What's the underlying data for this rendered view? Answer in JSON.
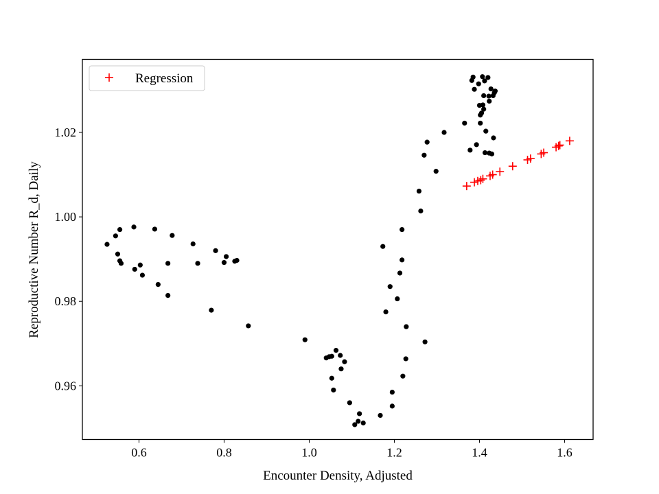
{
  "chart_data": {
    "type": "scatter",
    "title": "",
    "xlabel": "Encounter Density, Adjusted",
    "ylabel": "Reproductive Number R_d, Daily",
    "xlim": [
      0.467,
      1.667
    ],
    "ylim": [
      0.9473,
      1.0373
    ],
    "xticks": [
      0.6,
      0.8,
      1.0,
      1.2,
      1.4,
      1.6
    ],
    "xtick_labels": [
      "0.6",
      "0.8",
      "1.0",
      "1.2",
      "1.4",
      "1.6"
    ],
    "yticks": [
      0.96,
      0.98,
      1.0,
      1.02
    ],
    "ytick_labels": [
      "0.96",
      "0.98",
      "1.00",
      "1.02"
    ],
    "grid": false,
    "legend_position": "top-left",
    "series": [
      {
        "marker": "dot",
        "color": "#000000",
        "points": [
          [
            0.525,
            0.9935
          ],
          [
            0.545,
            0.9955
          ],
          [
            0.555,
            0.997
          ],
          [
            0.55,
            0.9912
          ],
          [
            0.555,
            0.9896
          ],
          [
            0.558,
            0.989
          ],
          [
            0.588,
            0.9976
          ],
          [
            0.59,
            0.9876
          ],
          [
            0.603,
            0.9886
          ],
          [
            0.608,
            0.9862
          ],
          [
            0.637,
            0.9971
          ],
          [
            0.645,
            0.984
          ],
          [
            0.668,
            0.989
          ],
          [
            0.668,
            0.9814
          ],
          [
            0.678,
            0.9956
          ],
          [
            0.727,
            0.9936
          ],
          [
            0.738,
            0.989
          ],
          [
            0.77,
            0.9779
          ],
          [
            0.78,
            0.992
          ],
          [
            0.8,
            0.9892
          ],
          [
            0.805,
            0.9906
          ],
          [
            0.825,
            0.9895
          ],
          [
            0.83,
            0.9897
          ],
          [
            0.857,
            0.9742
          ],
          [
            0.99,
            0.9709
          ],
          [
            1.04,
            0.9666
          ],
          [
            1.047,
            0.9669
          ],
          [
            1.053,
            0.967
          ],
          [
            1.053,
            0.9618
          ],
          [
            1.057,
            0.959
          ],
          [
            1.063,
            0.9684
          ],
          [
            1.073,
            0.9672
          ],
          [
            1.075,
            0.964
          ],
          [
            1.083,
            0.9657
          ],
          [
            1.095,
            0.956
          ],
          [
            1.107,
            0.9508
          ],
          [
            1.115,
            0.9516
          ],
          [
            1.118,
            0.9534
          ],
          [
            1.127,
            0.9512
          ],
          [
            1.167,
            0.953
          ],
          [
            1.173,
            0.993
          ],
          [
            1.18,
            0.9775
          ],
          [
            1.19,
            0.9835
          ],
          [
            1.195,
            0.9585
          ],
          [
            1.195,
            0.9552
          ],
          [
            1.207,
            0.9806
          ],
          [
            1.213,
            0.9867
          ],
          [
            1.218,
            0.997
          ],
          [
            1.218,
            0.9898
          ],
          [
            1.22,
            0.9623
          ],
          [
            1.227,
            0.9664
          ],
          [
            1.228,
            0.974
          ],
          [
            1.258,
            1.0061
          ],
          [
            1.262,
            1.0014
          ],
          [
            1.27,
            1.0146
          ],
          [
            1.272,
            0.9704
          ],
          [
            1.277,
            1.0177
          ],
          [
            1.298,
            1.0108
          ],
          [
            1.317,
            1.02
          ],
          [
            1.365,
            1.0222
          ],
          [
            1.378,
            1.0158
          ],
          [
            1.382,
            1.0323
          ],
          [
            1.385,
            1.0331
          ],
          [
            1.388,
            1.0302
          ],
          [
            1.393,
            1.0171
          ],
          [
            1.398,
            1.0315
          ],
          [
            1.4,
            1.0264
          ],
          [
            1.402,
            1.0222
          ],
          [
            1.402,
            1.0241
          ],
          [
            1.405,
            1.0246
          ],
          [
            1.407,
            1.0332
          ],
          [
            1.408,
            1.0265
          ],
          [
            1.41,
            1.0287
          ],
          [
            1.41,
            1.0255
          ],
          [
            1.412,
            1.0322
          ],
          [
            1.413,
            1.0152
          ],
          [
            1.415,
            1.0203
          ],
          [
            1.42,
            1.033
          ],
          [
            1.422,
            1.0286
          ],
          [
            1.423,
            1.0274
          ],
          [
            1.423,
            1.0151
          ],
          [
            1.427,
            1.0303
          ],
          [
            1.429,
            1.0149
          ],
          [
            1.432,
            1.0287
          ],
          [
            1.433,
            1.0187
          ],
          [
            1.435,
            1.0294
          ],
          [
            1.437,
            1.0298
          ]
        ]
      },
      {
        "name": "Regression",
        "marker": "plus",
        "color": "#ff0000",
        "points": [
          [
            1.37,
            1.0073
          ],
          [
            1.388,
            1.0082
          ],
          [
            1.396,
            1.0085
          ],
          [
            1.403,
            1.0087
          ],
          [
            1.408,
            1.009
          ],
          [
            1.425,
            1.0097
          ],
          [
            1.431,
            1.01
          ],
          [
            1.448,
            1.0107
          ],
          [
            1.478,
            1.012
          ],
          [
            1.513,
            1.0135
          ],
          [
            1.52,
            1.0138
          ],
          [
            1.545,
            1.0149
          ],
          [
            1.551,
            1.0152
          ],
          [
            1.58,
            1.0165
          ],
          [
            1.586,
            1.0168
          ],
          [
            1.589,
            1.017
          ],
          [
            1.612,
            1.018
          ]
        ]
      }
    ]
  }
}
